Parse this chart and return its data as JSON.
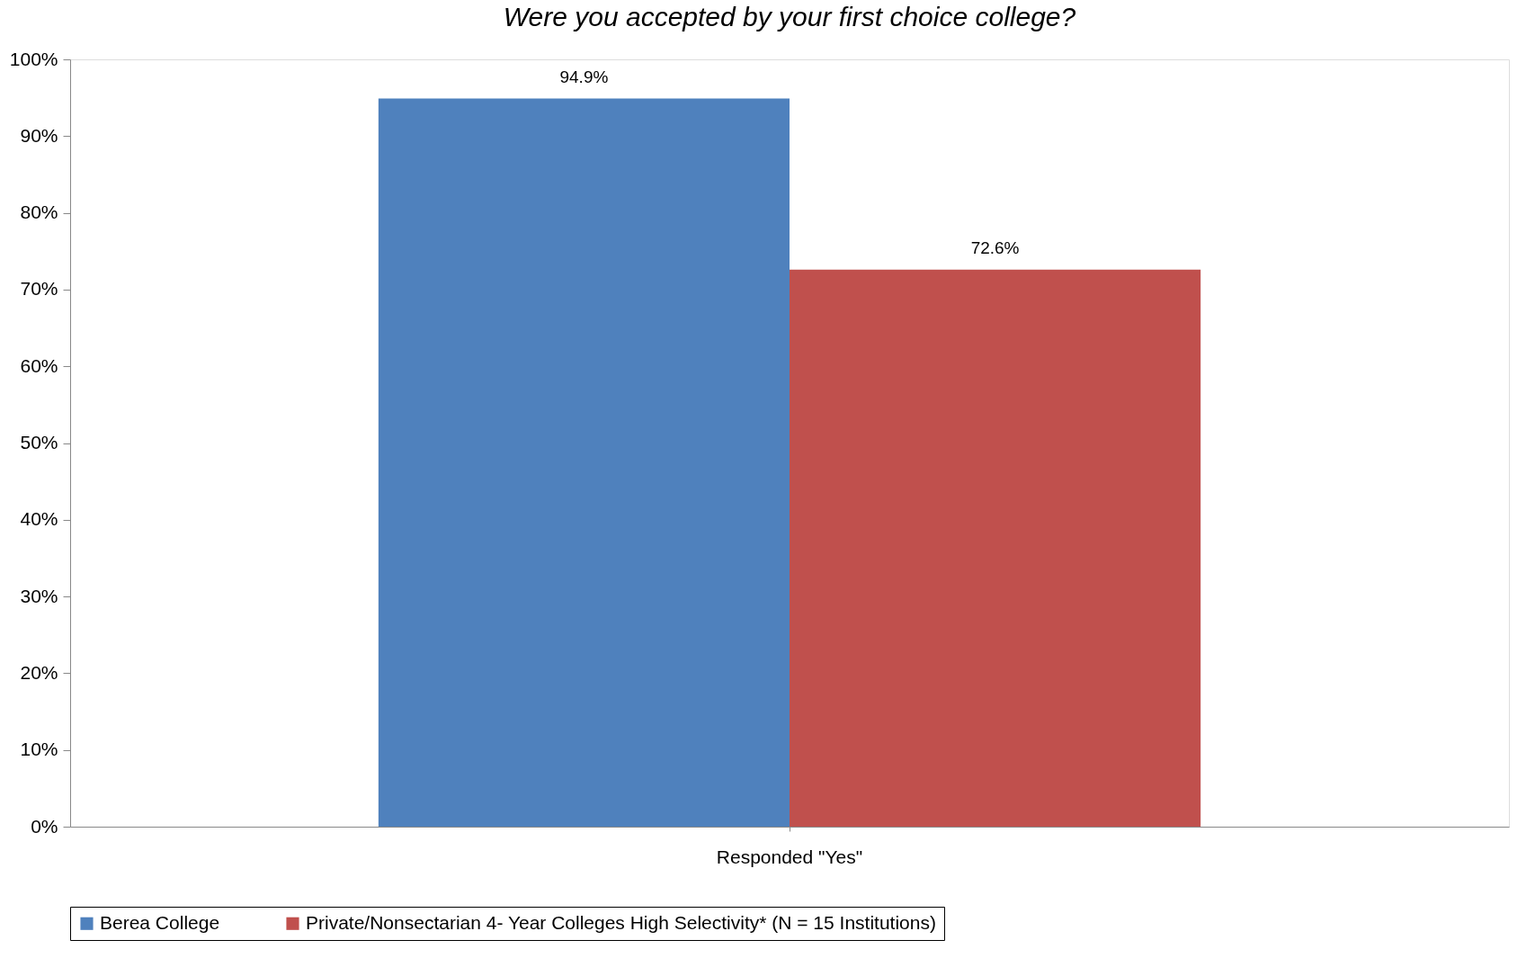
{
  "chart_data": {
    "type": "bar",
    "title": "Were you accepted by your first choice college?",
    "categories": [
      "Responded \"Yes\""
    ],
    "series": [
      {
        "name": "Berea College",
        "color": "#4f81bd",
        "values": [
          94.9
        ],
        "value_labels": [
          "94.9%"
        ]
      },
      {
        "name": "Private/Nonsectarian 4- Year Colleges High Selectivity* (N = 15 Institutions)",
        "color": "#c0504d",
        "values": [
          72.6
        ],
        "value_labels": [
          "72.6%"
        ]
      }
    ],
    "ylim": [
      0,
      100
    ],
    "yticks": [
      {
        "value": 0,
        "label": "0%"
      },
      {
        "value": 10,
        "label": "10%"
      },
      {
        "value": 20,
        "label": "20%"
      },
      {
        "value": 30,
        "label": "30%"
      },
      {
        "value": 40,
        "label": "40%"
      },
      {
        "value": 50,
        "label": "50%"
      },
      {
        "value": 60,
        "label": "60%"
      },
      {
        "value": 70,
        "label": "70%"
      },
      {
        "value": 80,
        "label": "80%"
      },
      {
        "value": 90,
        "label": "90%"
      },
      {
        "value": 100,
        "label": "100%"
      }
    ],
    "grid": false,
    "legend": "bottom"
  }
}
